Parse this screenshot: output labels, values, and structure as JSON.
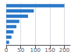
{
  "chart_data": {
    "type": "bar",
    "orientation": "horizontal",
    "categories": [
      null,
      null,
      null,
      null,
      null,
      null,
      null,
      null
    ],
    "values": [
      200,
      95,
      75,
      45,
      35,
      25,
      18,
      10
    ],
    "color": "#2878c8",
    "xlim": [
      0,
      220
    ],
    "xticks": [
      0,
      50,
      100,
      150,
      200
    ],
    "grid": true,
    "tick_labels": "x"
  }
}
